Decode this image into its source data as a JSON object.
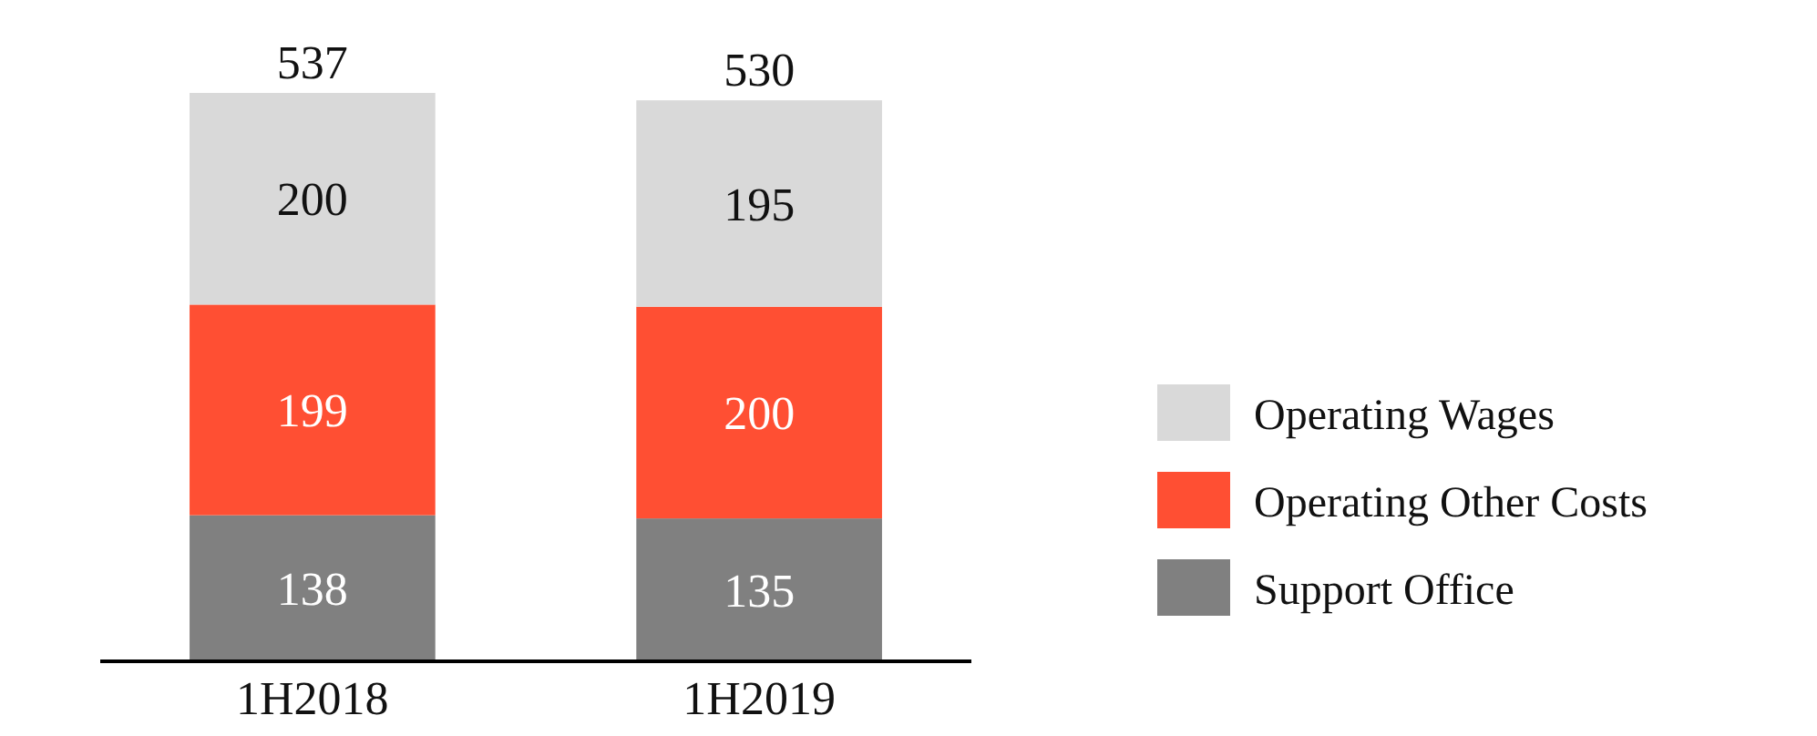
{
  "chart_data": {
    "type": "bar",
    "stacked": true,
    "data_labels": true,
    "legend": "right",
    "categories": [
      "1H2018",
      "1H2019"
    ],
    "series": [
      {
        "name": "Support Office",
        "color": "#808080",
        "values": [
          138,
          135
        ]
      },
      {
        "name": "Operating Other Costs",
        "color": "#ff4f33",
        "values": [
          199,
          200
        ]
      },
      {
        "name": "Operating Wages",
        "color": "#d9d9d9",
        "values": [
          200,
          195
        ]
      }
    ],
    "totals": [
      "537",
      "530"
    ]
  }
}
